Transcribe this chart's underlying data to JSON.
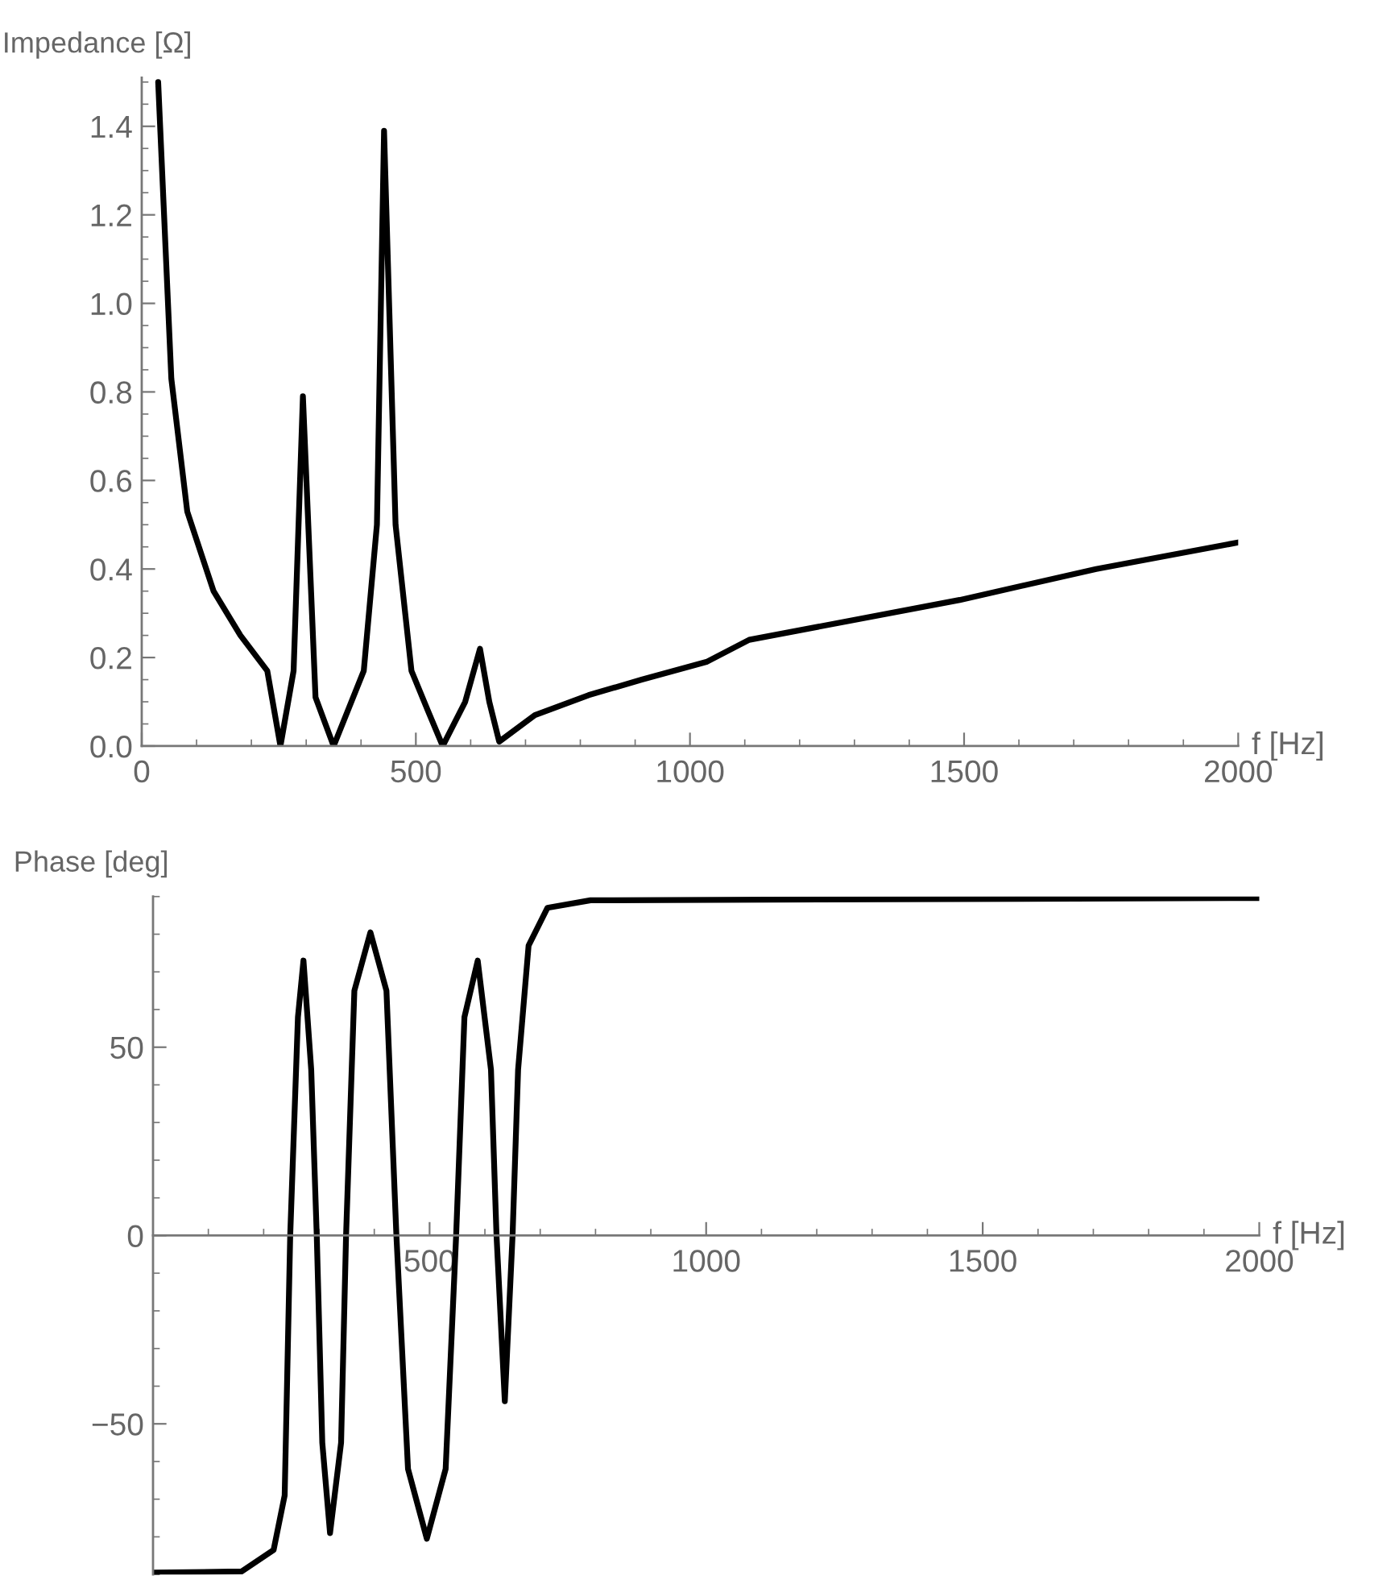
{
  "chart_data": [
    {
      "type": "line",
      "xlabel": "f [Hz]",
      "ylabel": "Impedance [Ω]",
      "xlim": [
        0,
        2000
      ],
      "ylim": [
        0,
        1.51
      ],
      "xticks": [
        0,
        500,
        1000,
        1500,
        2000
      ],
      "yticks": [
        {
          "value": 0,
          "label": "0.0"
        },
        {
          "value": 0.2,
          "label": "0.2"
        },
        {
          "value": 0.4,
          "label": "0.4"
        },
        {
          "value": 0.6,
          "label": "0.6"
        },
        {
          "value": 0.8,
          "label": "0.8"
        },
        {
          "value": 1.0,
          "label": "1.0"
        },
        {
          "value": 1.2,
          "label": "1.2"
        },
        {
          "value": 1.4,
          "label": "1.4"
        }
      ],
      "grid": false,
      "legend": false,
      "line_style": "solid",
      "marker": "none",
      "series": [
        {
          "color": "#000000",
          "x": [
            30,
            54,
            83,
            131,
            180,
            229,
            253,
            277,
            294,
            317,
            350,
            405,
            429,
            442,
            463,
            492,
            522,
            549,
            590,
            617,
            634,
            652,
            717,
            815,
            912,
            1030,
            1108,
            1492,
            1741,
            2000
          ],
          "values": [
            1.5,
            0.83,
            0.53,
            0.35,
            0.25,
            0.17,
            0.0,
            0.17,
            0.79,
            0.11,
            0.0,
            0.17,
            0.5,
            1.39,
            0.5,
            0.17,
            0.08,
            0.0,
            0.1,
            0.22,
            0.1,
            0.01,
            0.07,
            0.115,
            0.15,
            0.19,
            0.24,
            0.33,
            0.4,
            0.46
          ]
        }
      ]
    },
    {
      "type": "line",
      "xlabel": "f [Hz]",
      "ylabel": "Phase [deg]",
      "xlim": [
        0,
        2000
      ],
      "ylim": [
        -90,
        90
      ],
      "xticks": [
        500,
        1000,
        1500,
        2000
      ],
      "yticks": [
        {
          "value": -50,
          "label": "−50"
        },
        0,
        50
      ],
      "grid": false,
      "legend": false,
      "line_style": "solid",
      "marker": "none",
      "series": [
        {
          "color": "#000000",
          "x": [
            0,
            160,
            218,
            238,
            248,
            262,
            272,
            286,
            296,
            306,
            320,
            340,
            349,
            364,
            393,
            422,
            440,
            461,
            495,
            529,
            548,
            563,
            587,
            611,
            621,
            636,
            650,
            660,
            679,
            713,
            791,
            2000
          ],
          "values": [
            -89.5,
            -89.2,
            -83.5,
            -69,
            0,
            58,
            73,
            44,
            0,
            -55,
            -79,
            -55,
            0,
            65,
            80.5,
            65,
            0,
            -62,
            -80.5,
            -62,
            0,
            58,
            73,
            44,
            0,
            -44,
            0,
            44,
            77,
            87,
            89,
            89.6
          ]
        }
      ]
    }
  ]
}
